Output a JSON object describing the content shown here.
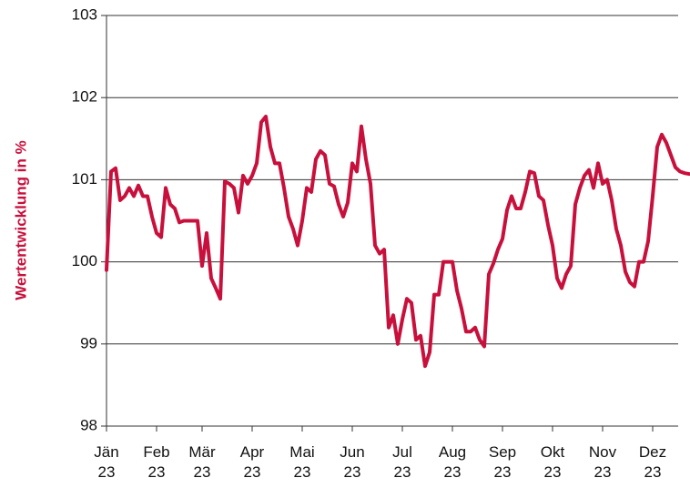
{
  "chart_data": {
    "type": "line",
    "y_label": "Wertentwicklung in %",
    "categories": [
      "Jän\n23",
      null,
      null,
      null,
      null,
      null,
      null,
      null,
      null,
      null,
      null,
      "Feb\n23",
      null,
      null,
      null,
      null,
      null,
      null,
      null,
      null,
      null,
      "Mär\n23",
      null,
      null,
      null,
      null,
      null,
      null,
      null,
      null,
      null,
      null,
      "Apr\n23",
      null,
      null,
      null,
      null,
      null,
      null,
      null,
      null,
      null,
      null,
      "Mai\n23",
      null,
      null,
      null,
      null,
      null,
      null,
      null,
      null,
      null,
      null,
      "Jun\n23",
      null,
      null,
      null,
      null,
      null,
      null,
      null,
      null,
      null,
      null,
      "Jul\n23",
      null,
      null,
      null,
      null,
      null,
      null,
      null,
      null,
      null,
      null,
      "Aug\n23",
      null,
      null,
      null,
      null,
      null,
      null,
      null,
      null,
      null,
      null,
      "Sep\n23",
      null,
      null,
      null,
      null,
      null,
      null,
      null,
      null,
      null,
      null,
      "Okt\n23",
      null,
      null,
      null,
      null,
      null,
      null,
      null,
      null,
      null,
      null,
      "Nov\n23",
      null,
      null,
      null,
      null,
      null,
      null,
      null,
      null,
      null,
      null,
      "Dez\n23",
      null,
      null,
      null,
      null,
      null,
      null,
      null,
      null
    ],
    "series": [
      {
        "color": "#c8103c",
        "values": [
          99.9,
          101.1,
          101.14,
          100.75,
          100.8,
          100.9,
          100.8,
          100.93,
          100.8,
          100.8,
          100.55,
          100.35,
          100.3,
          100.9,
          100.7,
          100.65,
          100.48,
          100.5,
          100.5,
          100.5,
          100.5,
          99.95,
          100.35,
          99.8,
          99.68,
          99.55,
          100.98,
          100.95,
          100.9,
          100.6,
          101.05,
          100.95,
          101.05,
          101.2,
          101.7,
          101.77,
          101.4,
          101.2,
          101.2,
          100.9,
          100.55,
          100.4,
          100.2,
          100.5,
          100.9,
          100.85,
          101.25,
          101.35,
          101.3,
          100.95,
          100.92,
          100.7,
          100.55,
          100.72,
          101.2,
          101.1,
          101.65,
          101.25,
          100.95,
          100.2,
          100.1,
          100.15,
          99.2,
          99.35,
          99.0,
          99.3,
          99.55,
          99.5,
          99.05,
          99.1,
          98.73,
          98.9,
          99.6,
          99.6,
          100.0,
          100.0,
          100.0,
          99.65,
          99.43,
          99.15,
          99.15,
          99.2,
          99.05,
          98.97,
          99.85,
          99.98,
          100.15,
          100.28,
          100.63,
          100.8,
          100.65,
          100.65,
          100.85,
          101.1,
          101.08,
          100.8,
          100.75,
          100.45,
          100.2,
          99.8,
          99.68,
          99.85,
          99.95,
          100.7,
          100.9,
          101.05,
          101.12,
          100.9,
          101.2,
          100.95,
          101.0,
          100.75,
          100.4,
          100.2,
          99.88,
          99.75,
          99.7,
          100.0,
          100.0,
          100.25,
          100.8,
          101.4,
          101.55,
          101.45,
          101.3,
          101.15,
          101.1,
          101.08,
          101.07
        ]
      }
    ],
    "ylim": [
      98,
      103
    ],
    "yticks": [
      98,
      99,
      100,
      101,
      102,
      103
    ],
    "grid": true
  }
}
